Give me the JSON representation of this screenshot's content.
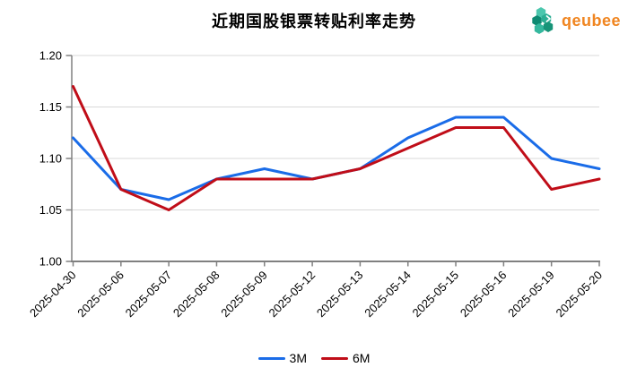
{
  "header": {
    "logo_text": "qeubee"
  },
  "chart_data": {
    "type": "line",
    "title": "近期国股银票转贴利率走势",
    "categories": [
      "2025-04-30",
      "2025-05-06",
      "2025-05-07",
      "2025-05-08",
      "2025-05-09",
      "2025-05-12",
      "2025-05-13",
      "2025-05-14",
      "2025-05-15",
      "2025-05-16",
      "2025-05-19",
      "2025-05-20"
    ],
    "series": [
      {
        "name": "3M",
        "color": "#1a6ce8",
        "values": [
          1.12,
          1.07,
          1.06,
          1.08,
          1.09,
          1.08,
          1.09,
          1.12,
          1.14,
          1.14,
          1.1,
          1.09
        ]
      },
      {
        "name": "6M",
        "color": "#c00d18",
        "values": [
          1.17,
          1.07,
          1.05,
          1.08,
          1.08,
          1.08,
          1.09,
          1.11,
          1.13,
          1.13,
          1.07,
          1.08
        ]
      }
    ],
    "xlabel": "",
    "ylabel": "",
    "ylim": [
      1.0,
      1.2
    ],
    "yticks": [
      1.0,
      1.05,
      1.1,
      1.15,
      1.2
    ],
    "ytick_labels": [
      "1.00",
      "1.05",
      "1.10",
      "1.15",
      "1.20"
    ],
    "grid": true,
    "legend_position": "bottom"
  },
  "colors": {
    "grid": "#d9d9d9",
    "axis": "#808080",
    "text": "#000000",
    "logo_orange": "#f08520",
    "logo_teal_1": "#4cc7ae",
    "logo_teal_2": "#0e8a72",
    "logo_teal_3": "#2cae93",
    "logo_teal_4": "#35b89e",
    "logo_teal_5": "#179478"
  }
}
